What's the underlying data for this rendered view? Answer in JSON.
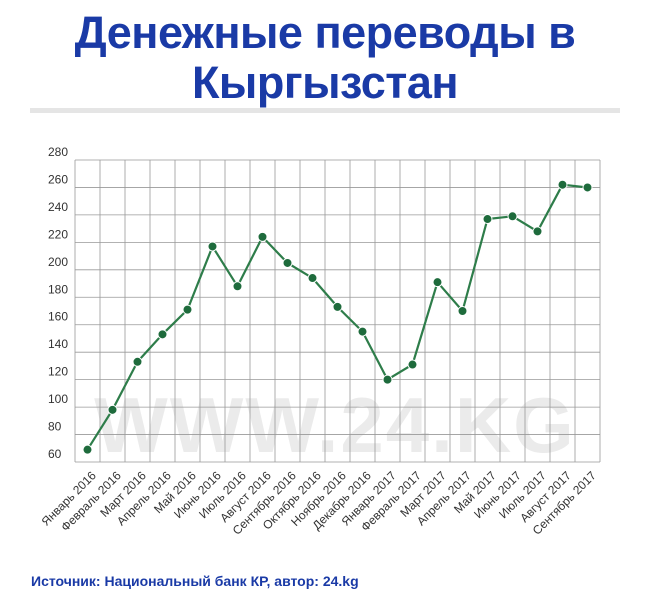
{
  "header": {
    "title_line1": "Денежные переводы в",
    "title_line2": "Кыргызстан"
  },
  "watermark": "WWW.24.KG",
  "source": "Источник: Национальный банк КР, автор: 24.kg",
  "colors": {
    "title": "#1a3aa6",
    "line": "#2e7d4a",
    "marker": "#1e6b3c",
    "grid": "#999999",
    "watermark": "#ebebeb"
  },
  "chart_data": {
    "type": "line",
    "title": "",
    "xlabel": "",
    "ylabel": "",
    "ylim": [
      60,
      280
    ],
    "yticks": [
      60,
      80,
      100,
      120,
      140,
      160,
      180,
      200,
      220,
      240,
      260,
      280
    ],
    "grid": true,
    "legend": "none",
    "categories": [
      "Январь 2016",
      "Февраль 2016",
      "Март 2016",
      "Апрель 2016",
      "Май 2016",
      "Июнь 2016",
      "Июль 2016",
      "Август 2016",
      "Сентябрь 2016",
      "Октябрь 2016",
      "Ноябрь 2016",
      "Декабрь 2016",
      "Январь 2017",
      "Февраль 2017",
      "Март 2017",
      "Апрель 2017",
      "Май 2017",
      "Июнь 2017",
      "Июль 2017",
      "Август 2017",
      "Сентябрь 2017"
    ],
    "series": [
      {
        "values": [
          69,
          98,
          133,
          153,
          171,
          217,
          188,
          224,
          205,
          194,
          173,
          155,
          120,
          131,
          191,
          170,
          237,
          239,
          228,
          262,
          260
        ]
      }
    ]
  }
}
